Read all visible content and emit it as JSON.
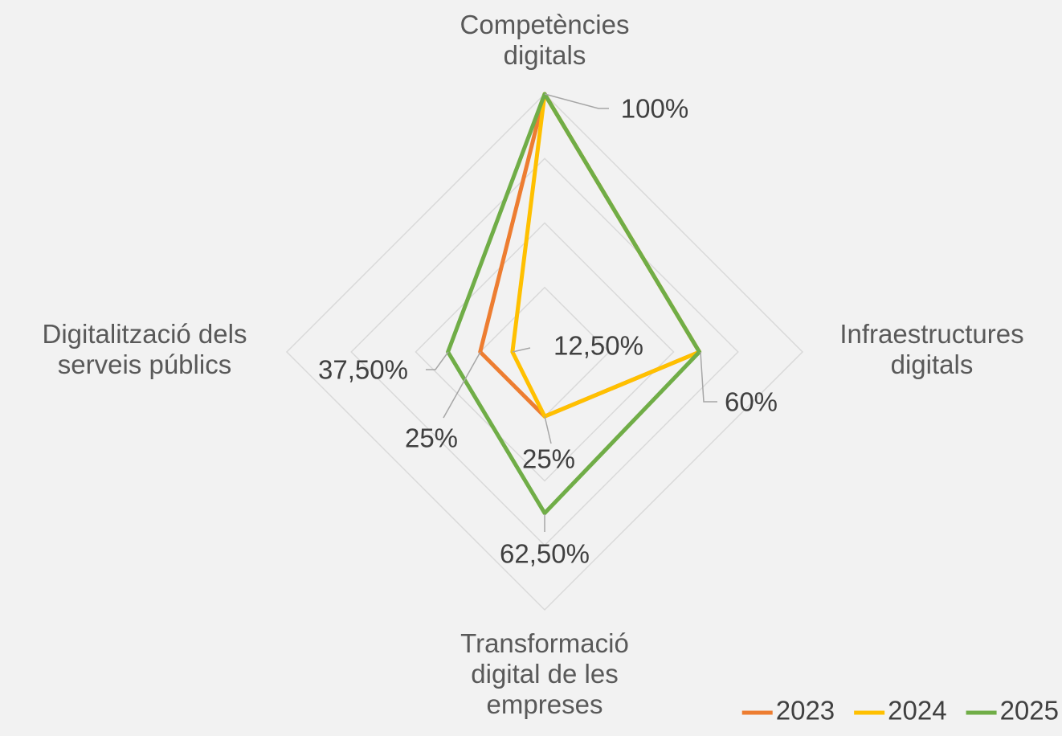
{
  "chart_data": {
    "type": "radar",
    "categories": [
      "Competències digitals",
      "Infraestructures digitals",
      "Transformació digital de les empreses",
      "Digitalització dels serveis públics"
    ],
    "series": [
      {
        "name": "2023",
        "color": "#ed7d31",
        "values": [
          100,
          60,
          25,
          25
        ],
        "value_labels": [
          null,
          null,
          null,
          "25%"
        ]
      },
      {
        "name": "2024",
        "color": "#ffc000",
        "values": [
          100,
          60,
          25,
          12.5
        ],
        "value_labels": [
          null,
          null,
          "25%",
          "12,50%"
        ]
      },
      {
        "name": "2025",
        "color": "#70ad47",
        "values": [
          100,
          60,
          62.5,
          37.5
        ],
        "value_labels": [
          "100%",
          "60%",
          "62,50%",
          "37,50%"
        ]
      }
    ],
    "rlim": [
      0,
      100
    ],
    "rticks": [
      0,
      25,
      50,
      75,
      100
    ],
    "grid": true,
    "legend": "bottom-right"
  }
}
